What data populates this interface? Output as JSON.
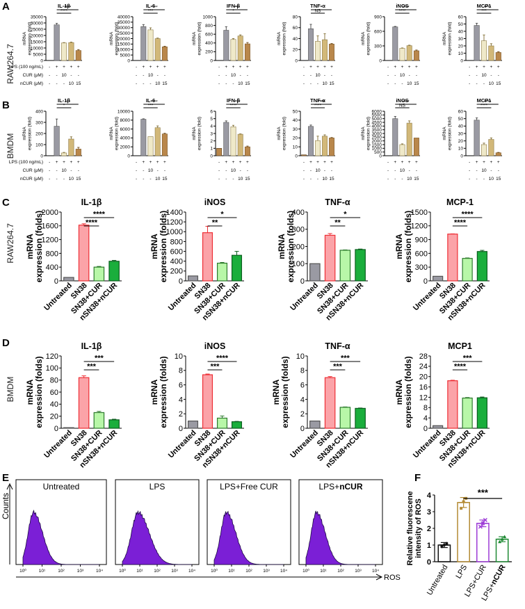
{
  "colors": {
    "gray": "#9a9aa3",
    "cream": "#efe9c9",
    "tan": "#d2b879",
    "brown": "#b9874b",
    "pink": "#fba3a8",
    "red": "#ee2f35",
    "lightgreen": "#b8f7a8",
    "green": "#1aae3c",
    "purple": "#7b1fd6",
    "gold": "#b38a33",
    "violet": "#9c3bd6",
    "darkgreen": "#1f8a34"
  },
  "panels": {
    "A": {
      "letter": "A",
      "row_label": "RAW264.7"
    },
    "B": {
      "letter": "B",
      "row_label": "BMDM"
    },
    "C": {
      "letter": "C",
      "row_label": "RAW264.7"
    },
    "D": {
      "letter": "D",
      "row_label": "BMDM"
    },
    "E": {
      "letter": "E"
    },
    "F": {
      "letter": "F"
    }
  },
  "treat_table": {
    "rows": [
      "LPS (100 ng/mL)",
      "CUR (μM)",
      "nCUR (μM)"
    ],
    "values": [
      [
        "-",
        "+",
        "+",
        "+",
        "+"
      ],
      [
        "-",
        "-",
        "10",
        "-",
        "-"
      ],
      [
        "-",
        "-",
        "-",
        "10",
        "15"
      ]
    ]
  },
  "ab_ylabel": [
    "mRNA",
    "expression (fold)"
  ],
  "cd_ylabel": [
    "mRNA",
    "expression (folds)"
  ],
  "cd_categories": [
    "Untreated",
    "SN38",
    "SN38+CUR",
    "nSN38+nCUR"
  ],
  "chart_data": [
    {
      "id": "A1",
      "panel": "A",
      "type": "bar",
      "title": "IL-1β",
      "values": [
        0,
        28500,
        14000,
        14300,
        8000
      ],
      "errors": [
        0,
        1200,
        300,
        400,
        700
      ],
      "ylim": [
        0,
        35000
      ],
      "yticks": [
        0,
        5000,
        10000,
        15000,
        20000,
        25000,
        30000,
        35000
      ],
      "sig": [
        {
          "a": 1,
          "b": 3,
          "t": "****"
        },
        {
          "a": 1,
          "b": 4,
          "t": "****"
        }
      ]
    },
    {
      "id": "A2",
      "panel": "A",
      "type": "bar",
      "title": "IL-6",
      "values": [
        0,
        31000,
        28000,
        20000,
        12500
      ],
      "errors": [
        0,
        1800,
        1800,
        500,
        500
      ],
      "ylim": [
        0,
        40000
      ],
      "yticks": [
        0,
        5000,
        10000,
        15000,
        20000,
        25000,
        30000,
        35000,
        40000
      ],
      "sig": [
        {
          "a": 1,
          "b": 3,
          "t": "***"
        },
        {
          "a": 1,
          "b": 4,
          "t": "****"
        }
      ]
    },
    {
      "id": "A3",
      "panel": "A",
      "type": "bar",
      "title": "IFN-β",
      "values": [
        0,
        690,
        480,
        560,
        380
      ],
      "errors": [
        0,
        80,
        20,
        25,
        30
      ],
      "ylim": [
        0,
        1000
      ],
      "yticks": [
        0,
        200,
        400,
        600,
        800,
        1000
      ],
      "sig": [
        {
          "a": 1,
          "b": 3,
          "t": "*"
        },
        {
          "a": 1,
          "b": 4,
          "t": "***"
        }
      ]
    },
    {
      "id": "A4",
      "panel": "A",
      "type": "bar",
      "title": "TNF-α",
      "values": [
        0,
        58,
        35,
        38,
        30
      ],
      "errors": [
        0,
        8,
        10,
        11,
        1
      ],
      "ylim": [
        0,
        80
      ],
      "yticks": [
        0,
        20,
        40,
        60,
        80
      ],
      "sig": [
        {
          "a": 1,
          "b": 3,
          "t": "NS"
        },
        {
          "a": 1,
          "b": 4,
          "t": "*"
        }
      ]
    },
    {
      "id": "A5",
      "panel": "A",
      "type": "bar",
      "title": "iNOS",
      "values": [
        0,
        690,
        250,
        305,
        200
      ],
      "errors": [
        0,
        10,
        8,
        10,
        15
      ],
      "ylim": [
        0,
        900
      ],
      "yticks": [
        0,
        300,
        600,
        900
      ],
      "sig": [
        {
          "a": 1,
          "b": 3,
          "t": "****"
        },
        {
          "a": 1,
          "b": 4,
          "t": "****"
        }
      ]
    },
    {
      "id": "A6",
      "panel": "A",
      "type": "bar",
      "title": "MCP1",
      "values": [
        0,
        48,
        27,
        20,
        11
      ],
      "errors": [
        0,
        3,
        8,
        3,
        1
      ],
      "ylim": [
        0,
        60
      ],
      "yticks": [
        0,
        10,
        20,
        30,
        40,
        50,
        60
      ],
      "sig": [
        {
          "a": 1,
          "b": 3,
          "t": "***"
        },
        {
          "a": 1,
          "b": 4,
          "t": "****"
        }
      ]
    },
    {
      "id": "B1",
      "panel": "B",
      "type": "bar",
      "title": "IL-1β",
      "values": [
        0,
        265,
        25,
        150,
        60
      ],
      "errors": [
        0,
        65,
        5,
        20,
        15
      ],
      "ylim": [
        0,
        400
      ],
      "yticks": [
        0,
        100,
        200,
        300,
        400
      ],
      "sig": [
        {
          "a": 1,
          "b": 3,
          "t": "*"
        },
        {
          "a": 1,
          "b": 4,
          "t": "***"
        }
      ]
    },
    {
      "id": "B2",
      "panel": "B",
      "type": "bar",
      "title": "IL-6",
      "values": [
        0,
        8200,
        4300,
        6300,
        4900
      ],
      "errors": [
        0,
        100,
        0,
        400,
        150
      ],
      "ylim": [
        0,
        10000
      ],
      "yticks": [
        0,
        2000,
        4000,
        6000,
        8000,
        10000
      ],
      "sig": [
        {
          "a": 1,
          "b": 3,
          "t": "***"
        },
        {
          "a": 1,
          "b": 4,
          "t": "****"
        }
      ]
    },
    {
      "id": "B3",
      "panel": "B",
      "type": "bar",
      "title": "IFN-β",
      "values": [
        1.0,
        4.5,
        3.9,
        2.9,
        1.2
      ],
      "errors": [
        0,
        0.2,
        0.2,
        0.05,
        0.1
      ],
      "ylim": [
        0,
        6
      ],
      "yticks": [
        0,
        1,
        2,
        3,
        4,
        5,
        6
      ],
      "sig": [
        {
          "a": 1,
          "b": 3,
          "t": "****"
        },
        {
          "a": 1,
          "b": 4,
          "t": "****"
        }
      ]
    },
    {
      "id": "B4",
      "panel": "B",
      "type": "bar",
      "title": "TNF-α",
      "values": [
        1,
        33,
        17,
        22,
        20
      ],
      "errors": [
        0,
        1.5,
        5,
        1.5,
        0.5
      ],
      "ylim": [
        0,
        50
      ],
      "yticks": [
        0,
        10,
        20,
        30,
        40,
        50
      ],
      "sig": [
        {
          "a": 1,
          "b": 3,
          "t": "****"
        },
        {
          "a": 1,
          "b": 4,
          "t": "****"
        }
      ]
    },
    {
      "id": "B5",
      "panel": "B",
      "type": "bar",
      "title": "iNOS",
      "values": [
        0,
        5000,
        1500,
        4400,
        2400
      ],
      "errors": [
        0,
        300,
        100,
        300,
        0
      ],
      "ylim": [
        0,
        6000
      ],
      "yticks": [
        0,
        500,
        1000,
        1500,
        2000,
        2500,
        3000,
        3500,
        4000,
        4500,
        5000,
        5500,
        6000
      ],
      "sig": [
        {
          "a": 1,
          "b": 3,
          "t": "NS"
        },
        {
          "a": 1,
          "b": 4,
          "t": "****"
        }
      ]
    },
    {
      "id": "B6",
      "panel": "B",
      "type": "bar",
      "title": "MCP1",
      "values": [
        0,
        48,
        15,
        22,
        4
      ],
      "errors": [
        0,
        3,
        2,
        2,
        0.5
      ],
      "ylim": [
        0,
        60
      ],
      "yticks": [
        0,
        10,
        20,
        30,
        40,
        50,
        60
      ],
      "sig": [
        {
          "a": 1,
          "b": 3,
          "t": "****"
        },
        {
          "a": 1,
          "b": 4,
          "t": "****"
        }
      ]
    },
    {
      "id": "C1",
      "panel": "C",
      "type": "bar",
      "title": "IL-1β",
      "values": [
        100,
        1620,
        400,
        570
      ],
      "errors": [
        0,
        40,
        20,
        25
      ],
      "ylim": [
        0,
        2000
      ],
      "yticks": [
        0,
        400,
        800,
        1200,
        1600,
        2000
      ],
      "sig": [
        {
          "a": 1,
          "b": 2,
          "t": "****"
        },
        {
          "a": 1,
          "b": 3,
          "t": "****"
        }
      ]
    },
    {
      "id": "C2",
      "panel": "C",
      "type": "bar",
      "title": "iNOS",
      "values": [
        100,
        980,
        360,
        520
      ],
      "errors": [
        0,
        130,
        15,
        80
      ],
      "ylim": [
        0,
        1400
      ],
      "yticks": [
        0,
        200,
        400,
        600,
        800,
        1000,
        1200,
        1400
      ],
      "sig": [
        {
          "a": 1,
          "b": 2,
          "t": "**"
        },
        {
          "a": 1,
          "b": 3,
          "t": "*"
        }
      ]
    },
    {
      "id": "C3",
      "panel": "C",
      "type": "bar",
      "title": "TNF-α",
      "values": [
        100,
        265,
        178,
        182
      ],
      "errors": [
        0,
        10,
        2,
        3
      ],
      "ylim": [
        0,
        400
      ],
      "yticks": [
        0,
        100,
        200,
        300,
        400
      ],
      "sig": [
        {
          "a": 1,
          "b": 2,
          "t": "**"
        },
        {
          "a": 1,
          "b": 3,
          "t": "*"
        }
      ]
    },
    {
      "id": "C4",
      "panel": "C",
      "type": "bar",
      "title": "MCP-1",
      "values": [
        100,
        1020,
        490,
        640
      ],
      "errors": [
        0,
        5,
        10,
        25
      ],
      "ylim": [
        0,
        1500
      ],
      "yticks": [
        0,
        300,
        600,
        900,
        1200,
        1500
      ],
      "sig": [
        {
          "a": 1,
          "b": 2,
          "t": "****"
        },
        {
          "a": 1,
          "b": 3,
          "t": "****"
        }
      ]
    },
    {
      "id": "D1",
      "panel": "D",
      "type": "bar",
      "title": "IL-1β",
      "values": [
        1,
        84,
        26,
        14
      ],
      "errors": [
        0,
        3,
        2,
        1
      ],
      "ylim": [
        0,
        120
      ],
      "yticks": [
        0,
        20,
        40,
        60,
        80,
        100,
        120
      ],
      "sig": [
        {
          "a": 1,
          "b": 2,
          "t": "***"
        },
        {
          "a": 1,
          "b": 3,
          "t": "***"
        }
      ]
    },
    {
      "id": "D2",
      "panel": "D",
      "type": "bar",
      "title": "iNOS",
      "values": [
        1,
        7.4,
        1.4,
        0.9
      ],
      "errors": [
        0,
        0.1,
        0.3,
        0.05
      ],
      "ylim": [
        0,
        10
      ],
      "yticks": [
        0,
        2,
        4,
        6,
        8,
        10
      ],
      "sig": [
        {
          "a": 1,
          "b": 2,
          "t": "***"
        },
        {
          "a": 1,
          "b": 3,
          "t": "****"
        }
      ]
    },
    {
      "id": "D3",
      "panel": "D",
      "type": "bar",
      "title": "TNF-α",
      "values": [
        1,
        7.0,
        2.9,
        2.75
      ],
      "errors": [
        0,
        0.15,
        0.05,
        0.05
      ],
      "ylim": [
        0,
        10
      ],
      "yticks": [
        0,
        2,
        4,
        6,
        8,
        10
      ],
      "sig": [
        {
          "a": 1,
          "b": 2,
          "t": "***"
        },
        {
          "a": 1,
          "b": 3,
          "t": "***"
        }
      ]
    },
    {
      "id": "D4",
      "panel": "D",
      "type": "bar",
      "title": "MCP1",
      "values": [
        1,
        18.4,
        11.7,
        11.8
      ],
      "errors": [
        0,
        0.2,
        0.2,
        0.3
      ],
      "ylim": [
        0,
        28
      ],
      "yticks": [
        0,
        4,
        8,
        12,
        16,
        20,
        24,
        28
      ],
      "sig": [
        {
          "a": 1,
          "b": 2,
          "t": "****"
        },
        {
          "a": 1,
          "b": 3,
          "t": "***"
        }
      ]
    },
    {
      "id": "E",
      "panel": "E",
      "type": "area",
      "xscale": "log",
      "xlim": [
        1,
        10000
      ],
      "xticks": [
        "10⁰",
        "10¹",
        "10²",
        "10³",
        "10⁴"
      ],
      "ylabel": "Counts",
      "xlabel": "ROS",
      "titles": [
        "Untreated",
        "LPS",
        "LPS+Free CUR",
        "LPS+"
      ],
      "title_bold_suffix": [
        "",
        "",
        "",
        "nCUR"
      ],
      "peak_log10": [
        0.55,
        0.9,
        0.7,
        0.6
      ],
      "width_log10": [
        0.28,
        0.38,
        0.32,
        0.3
      ]
    },
    {
      "id": "F",
      "panel": "F",
      "type": "bar",
      "ylabel": [
        "Relative fluorescene",
        "intensity of ROS"
      ],
      "categories": [
        "Untreated",
        "LPS",
        "LPS+CUR",
        "LPS+"
      ],
      "category_bold_suffix": [
        "",
        "",
        "",
        "nCUR"
      ],
      "values": [
        1.0,
        3.55,
        2.3,
        1.35
      ],
      "errors": [
        0.15,
        0.3,
        0.2,
        0.15
      ],
      "points": [
        [
          0.9,
          1.0,
          1.1
        ],
        [
          3.2,
          3.6,
          3.8
        ],
        [
          2.1,
          2.3,
          2.5
        ],
        [
          1.2,
          1.35,
          1.5
        ]
      ],
      "ylim": [
        0,
        4
      ],
      "yticks": [
        0,
        1,
        2,
        3,
        4
      ],
      "sig": [
        {
          "a": 1,
          "b": 3,
          "t": "***"
        }
      ]
    }
  ]
}
